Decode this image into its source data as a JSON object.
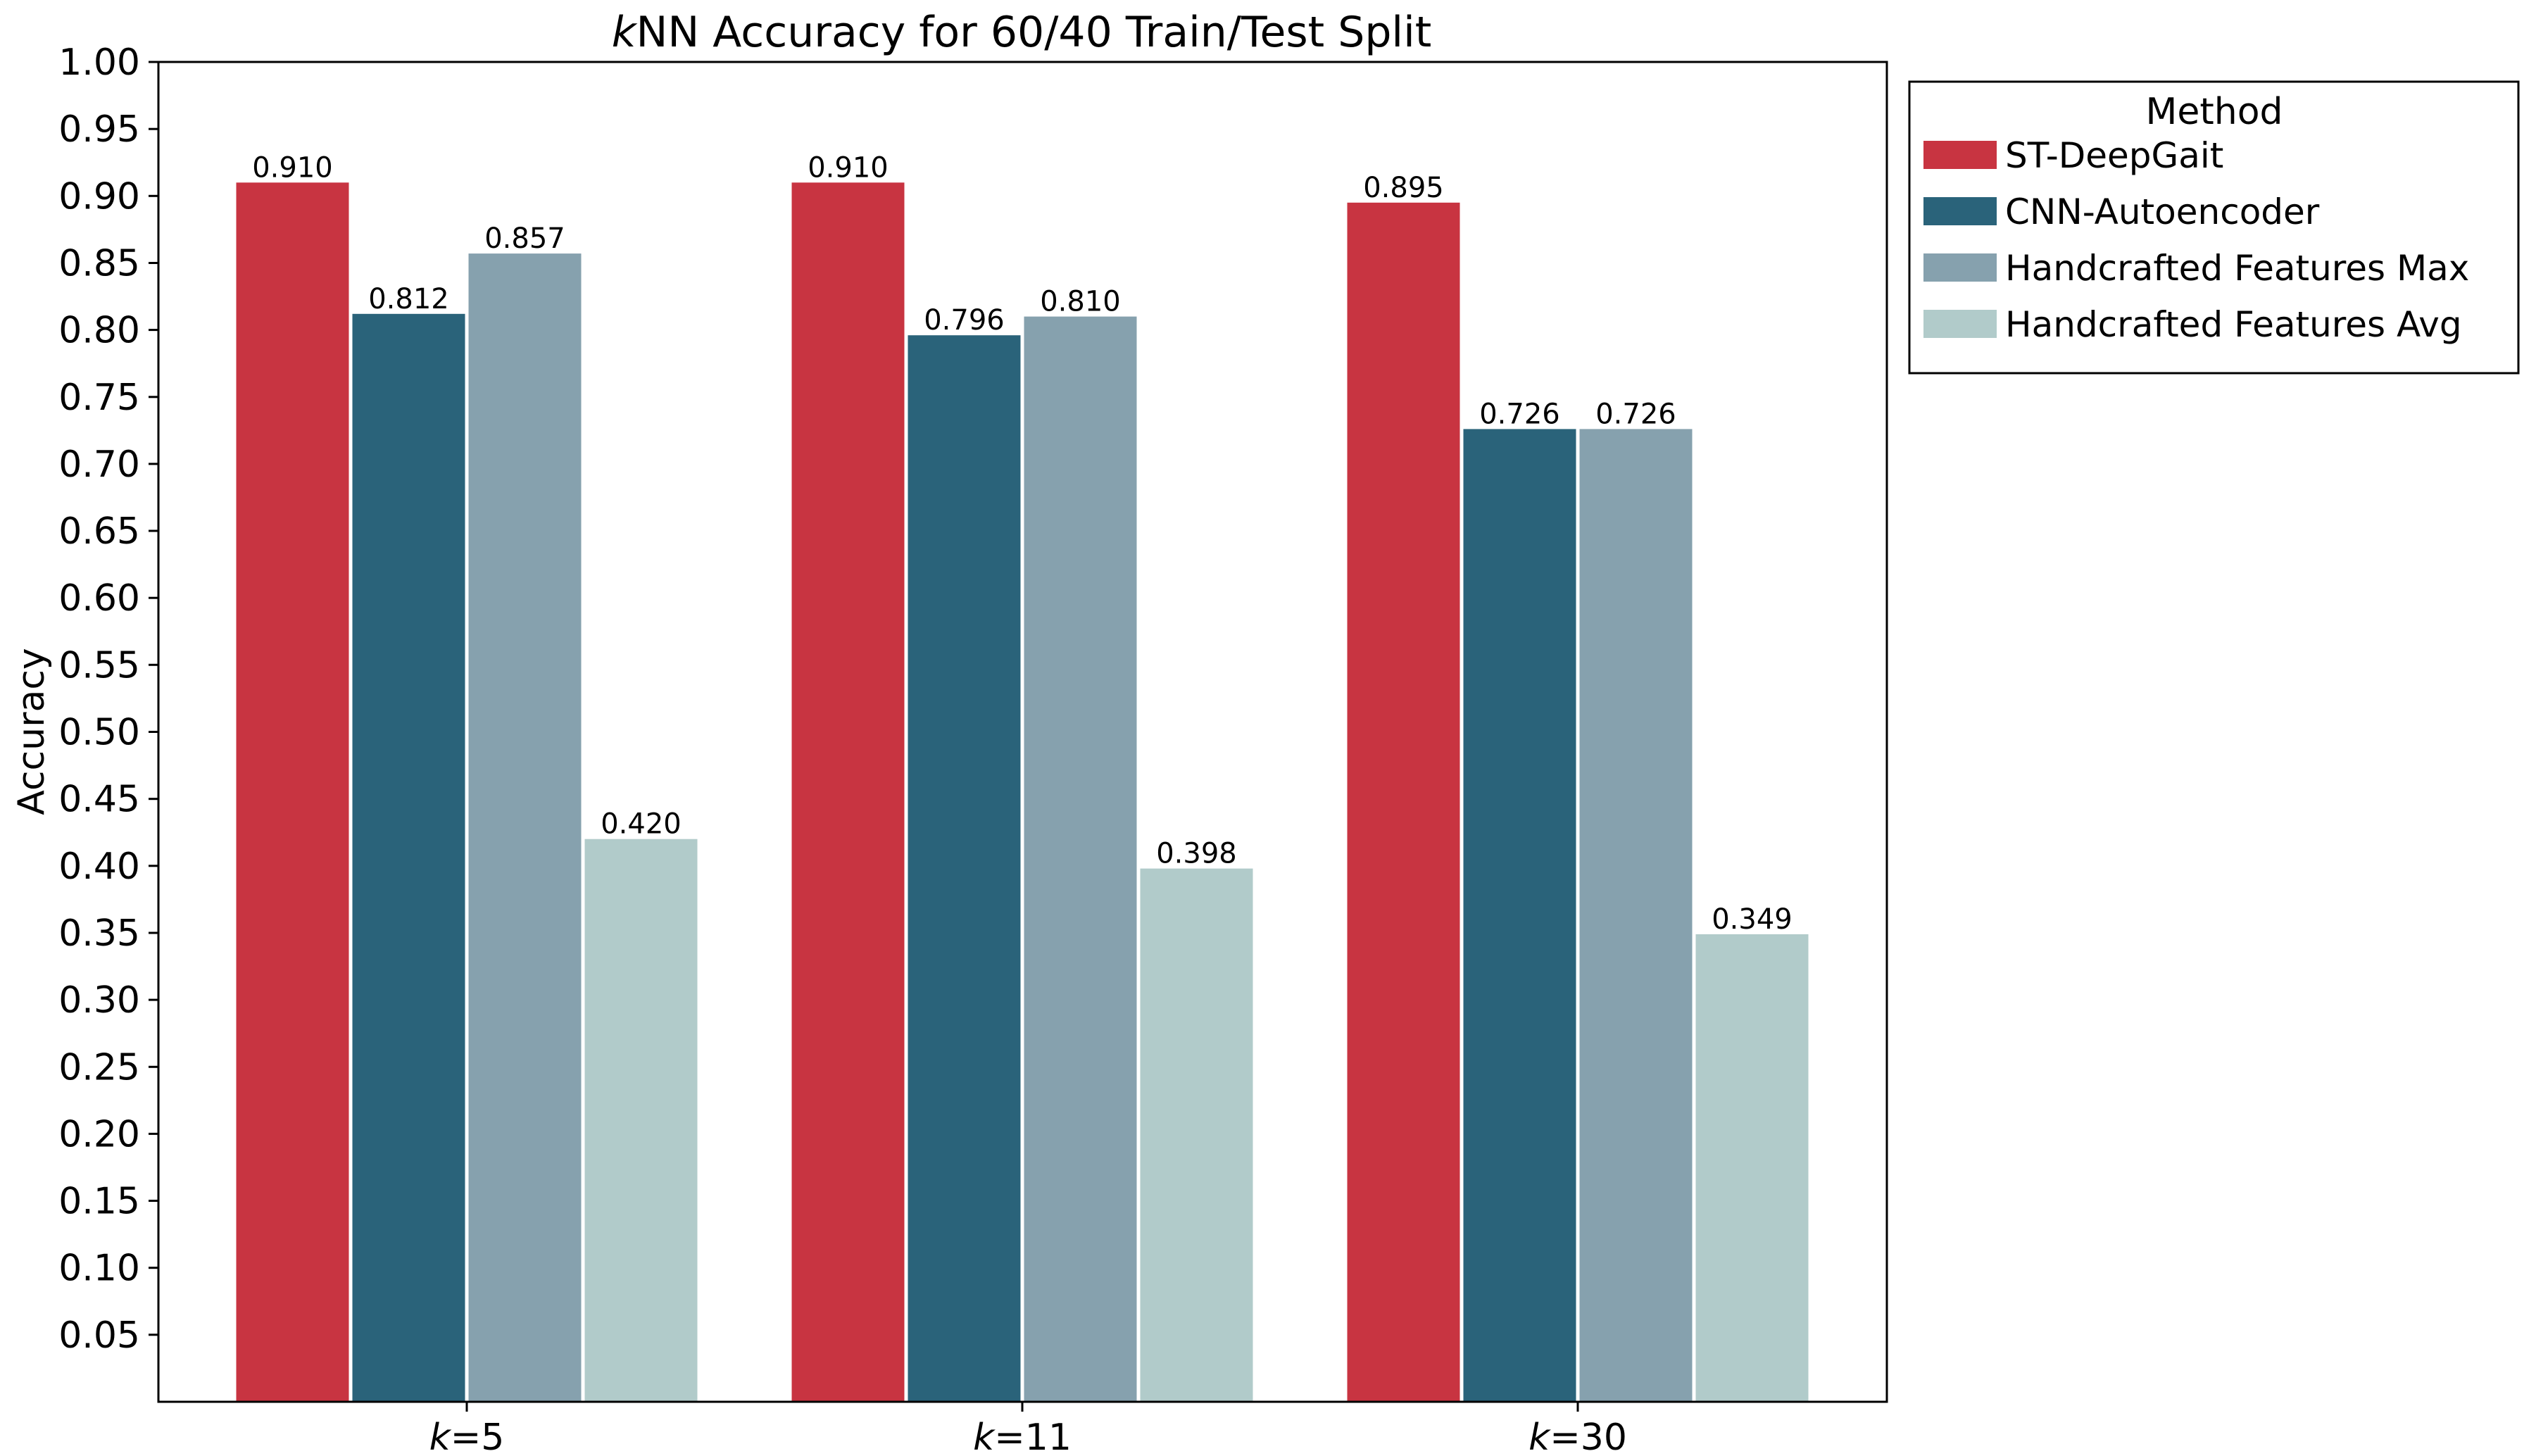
{
  "chart_data": {
    "type": "bar",
    "title": "kNN Accuracy for 60/40 Train/Test Split",
    "title_prefix_italic": "k",
    "title_rest": "NN Accuracy for 60/40 Train/Test Split",
    "xlabel": "",
    "ylabel": "Accuracy",
    "ylim": [
      0.0,
      1.0
    ],
    "yticks": [
      "0.05",
      "0.10",
      "0.15",
      "0.20",
      "0.25",
      "0.30",
      "0.35",
      "0.40",
      "0.45",
      "0.50",
      "0.55",
      "0.60",
      "0.65",
      "0.70",
      "0.75",
      "0.80",
      "0.85",
      "0.90",
      "0.95",
      "1.00"
    ],
    "categories": [
      "k=5",
      "k=11",
      "k=30"
    ],
    "category_labels": [
      {
        "italic": "k",
        "rest": "=5"
      },
      {
        "italic": "k",
        "rest": "=11"
      },
      {
        "italic": "k",
        "rest": "=30"
      }
    ],
    "series": [
      {
        "name": "ST-DeepGait",
        "color": "#c83441",
        "values": [
          0.91,
          0.91,
          0.895
        ],
        "labels": [
          "0.910",
          "0.910",
          "0.895"
        ]
      },
      {
        "name": "CNN-Autoencoder",
        "color": "#2a637a",
        "values": [
          0.812,
          0.796,
          0.726
        ],
        "labels": [
          "0.812",
          "0.796",
          "0.726"
        ]
      },
      {
        "name": "Handcrafted Features Max",
        "color": "#86a1ae",
        "values": [
          0.857,
          0.81,
          0.726
        ],
        "labels": [
          "0.857",
          "0.810",
          "0.726"
        ]
      },
      {
        "name": "Handcrafted Features Avg",
        "color": "#b1cbca",
        "values": [
          0.42,
          0.398,
          0.349
        ],
        "labels": [
          "0.420",
          "0.398",
          "0.349"
        ]
      }
    ],
    "legend": {
      "title": "Method",
      "placement": "outside-top-right"
    },
    "grid": false
  }
}
